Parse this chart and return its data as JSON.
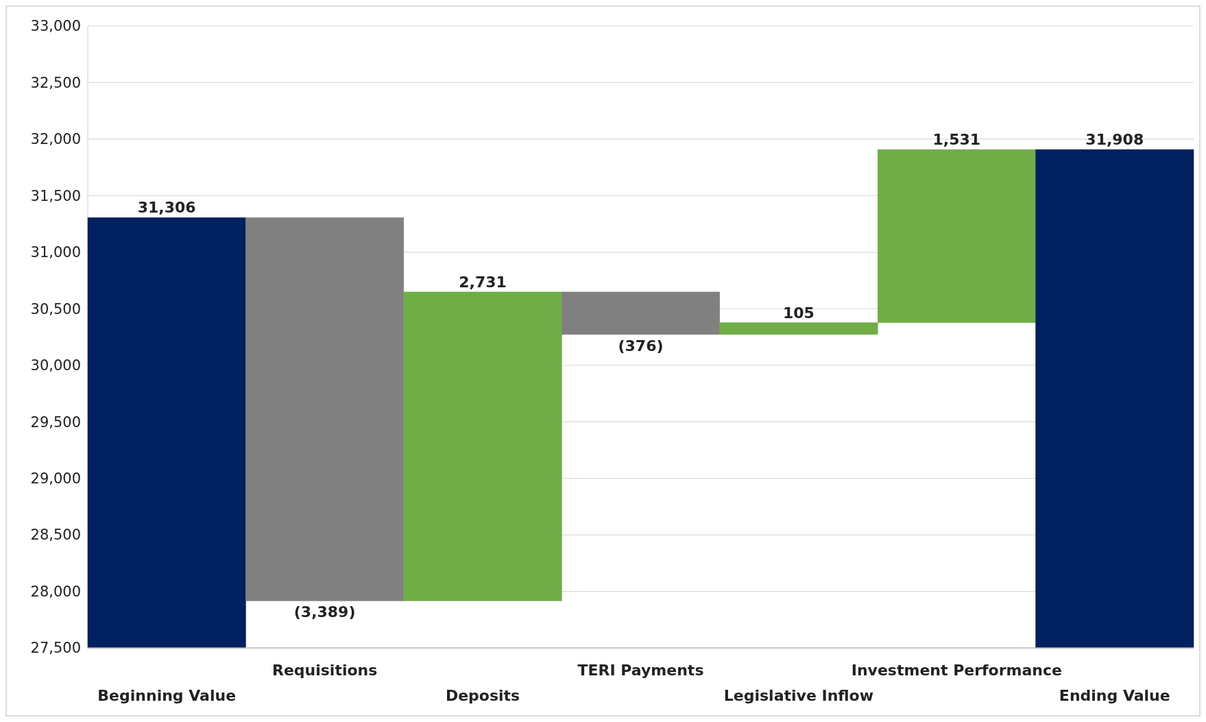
{
  "chart_data": {
    "type": "bar",
    "categories": [
      "Beginning Value",
      "Requisitions",
      "Deposits",
      "TERI Payments",
      "Legislative Inflow",
      "Investment Performance",
      "Ending Value"
    ],
    "values": [
      31306,
      -3389,
      2731,
      -376,
      105,
      1531,
      31908
    ],
    "base": [
      null,
      31306,
      27917,
      30648,
      30272,
      30377,
      null
    ],
    "colors": [
      "#002060",
      "#808080",
      "#70ad47",
      "#808080",
      "#70ad47",
      "#70ad47",
      "#002060"
    ],
    "value_labels": [
      "31,306",
      "(3,389)",
      "2,731",
      "(376)",
      "105",
      "1,531",
      "31,908"
    ],
    "ylim": [
      27500,
      33000
    ],
    "yticks": [
      {
        "value": 27500,
        "label": "27,500"
      },
      {
        "value": 28000,
        "label": "28,000"
      },
      {
        "value": 28500,
        "label": "28,500"
      },
      {
        "value": 29000,
        "label": "29,000"
      },
      {
        "value": 29500,
        "label": "29,500"
      },
      {
        "value": 30000,
        "label": "30,000"
      },
      {
        "value": 30500,
        "label": "30,500"
      },
      {
        "value": 31000,
        "label": "31,000"
      },
      {
        "value": 31500,
        "label": "31,500"
      },
      {
        "value": 32000,
        "label": "32,000"
      },
      {
        "value": 32500,
        "label": "32,500"
      },
      {
        "value": 33000,
        "label": "33,000"
      }
    ],
    "grid": "y"
  }
}
